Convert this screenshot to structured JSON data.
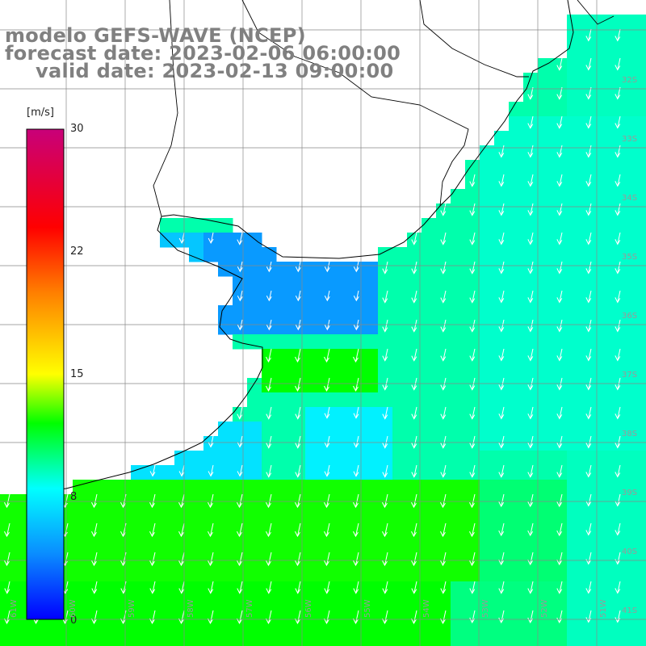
{
  "title": {
    "model": "modelo GEFS-WAVE (NCEP)",
    "forecast": "forecast date: 2023-02-06 06:00:00",
    "valid": "valid date: 2023-02-13 09:00:00"
  },
  "colorbar": {
    "unit": "[m/s]",
    "ticks": [
      "30",
      "22",
      "15",
      "8",
      "0"
    ],
    "range": [
      0,
      30
    ],
    "colors": [
      "#0000ff",
      "#0a8cff",
      "#00ffff",
      "#00ff00",
      "#ffff00",
      "#ff7f00",
      "#ff0000",
      "#c8007a"
    ]
  },
  "latitude_labels": [
    "32S",
    "33S",
    "34S",
    "35S",
    "36S",
    "37S",
    "38S",
    "39S",
    "40S",
    "41S"
  ],
  "longitude_labels": [
    "61W",
    "60W",
    "59W",
    "58W",
    "57W",
    "56W",
    "55W",
    "54W",
    "53W",
    "52W",
    "51W"
  ],
  "wind": {
    "direction": "from north-northeast (arrows pointing south-southwest)",
    "typical_speed_ms": [
      8,
      13
    ]
  },
  "colors": {
    "land": "#ffffff",
    "coast": "#000000",
    "grid": "#888888",
    "title_text": "#808080",
    "arrows": "#ffffff"
  }
}
